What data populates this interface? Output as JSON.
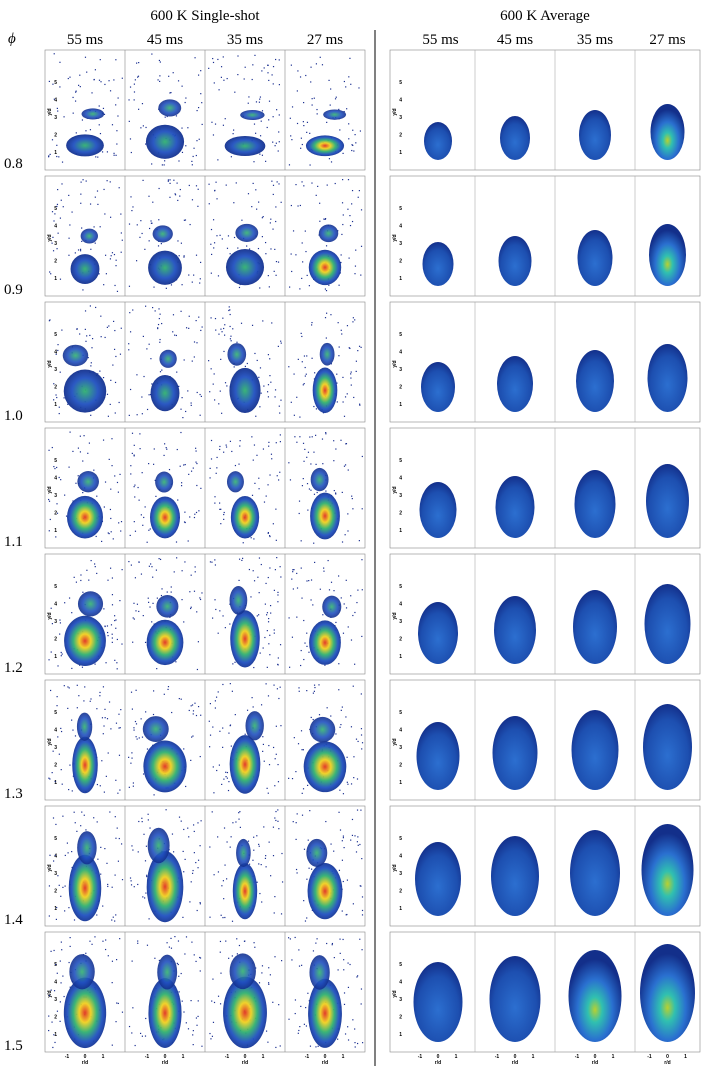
{
  "header": {
    "left_title": "600 K Single-shot",
    "right_title": "600 K Average",
    "phi_label": "ϕ"
  },
  "columns": [
    "55 ms",
    "45 ms",
    "35 ms",
    "27 ms"
  ],
  "rows": [
    "0.8",
    "0.9",
    "1.0",
    "1.1",
    "1.2",
    "1.3",
    "1.4",
    "1.5"
  ],
  "axes": {
    "y_label": "y/d",
    "x_label": "r/d",
    "y_ticks": [
      "1",
      "2",
      "3",
      "4",
      "5"
    ],
    "x_ticks": [
      "-1",
      "0",
      "1"
    ]
  }
}
